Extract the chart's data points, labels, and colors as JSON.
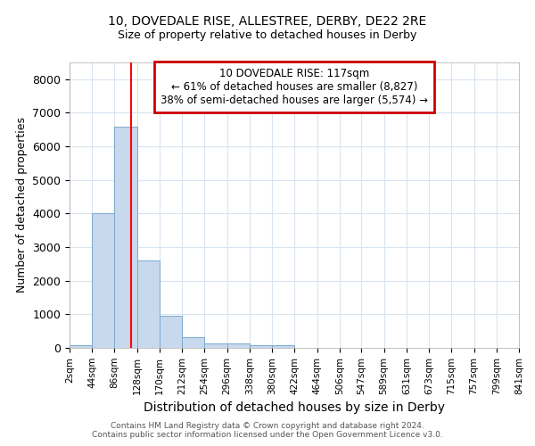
{
  "title1": "10, DOVEDALE RISE, ALLESTREE, DERBY, DE22 2RE",
  "title2": "Size of property relative to detached houses in Derby",
  "xlabel": "Distribution of detached houses by size in Derby",
  "ylabel": "Number of detached properties",
  "bin_edges": [
    2,
    44,
    86,
    128,
    170,
    212,
    254,
    296,
    338,
    380,
    422,
    464,
    506,
    547,
    589,
    631,
    673,
    715,
    757,
    799,
    841
  ],
  "bar_heights": [
    80,
    4000,
    6600,
    2600,
    950,
    330,
    130,
    130,
    80,
    80,
    0,
    0,
    0,
    0,
    0,
    0,
    0,
    0,
    0,
    0
  ],
  "bar_color": "#c8d8ed",
  "bar_edgecolor": "#7aaacf",
  "grid_color": "#d8e4f0",
  "bg_color": "#ffffff",
  "fig_bg_color": "#ffffff",
  "red_line_x": 117,
  "annotation_title": "10 DOVEDALE RISE: 117sqm",
  "annotation_line1": "← 61% of detached houses are smaller (8,827)",
  "annotation_line2": "38% of semi-detached houses are larger (5,574) →",
  "annotation_box_color": "#ffffff",
  "annotation_box_edgecolor": "#cc0000",
  "ylim": [
    0,
    8500
  ],
  "yticks": [
    0,
    1000,
    2000,
    3000,
    4000,
    5000,
    6000,
    7000,
    8000
  ],
  "footer1": "Contains HM Land Registry data © Crown copyright and database right 2024.",
  "footer2": "Contains public sector information licensed under the Open Government Licence v3.0."
}
